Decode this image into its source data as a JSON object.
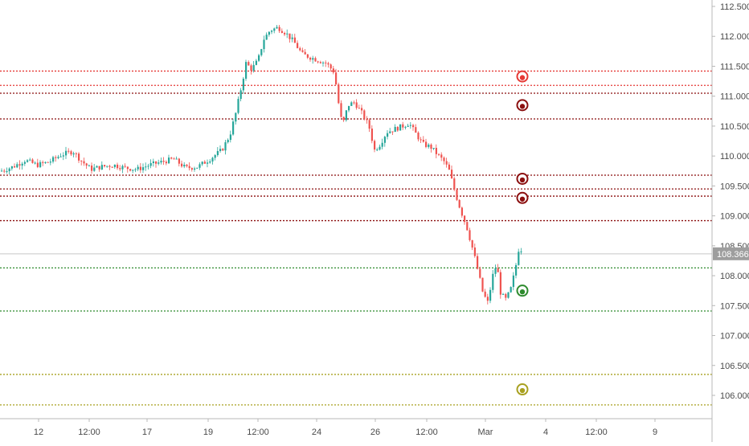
{
  "chart_data": {
    "type": "candlestick",
    "title": "",
    "xlabel": "",
    "ylabel": "",
    "ylim": [
      105.8,
      112.55
    ],
    "y_ticks": [
      "112.500",
      "112.000",
      "111.500",
      "111.000",
      "110.500",
      "110.000",
      "109.500",
      "109.000",
      "108.500",
      "108.000",
      "107.500",
      "107.000",
      "106.500",
      "106.000"
    ],
    "x_ticks": [
      "12",
      "12:00",
      "17",
      "19",
      "12:00",
      "24",
      "26",
      "12:00",
      "Mar",
      "4",
      "12:00",
      "9"
    ],
    "last_price": "108.366",
    "grid": false,
    "colors": {
      "up": "#26a69a",
      "down": "#ef5350",
      "resistance_bright": "#e53935",
      "resistance_dark": "#8b0f0f",
      "support": "#2e8b2e",
      "target": "#a8a020",
      "price_line": "#c8c8c8",
      "price_badge": "#9e9e9e"
    },
    "levels": [
      {
        "price": 111.42,
        "color": "#e53935"
      },
      {
        "price": 111.18,
        "color": "#e53935"
      },
      {
        "price": 111.05,
        "color": "#8b0f0f"
      },
      {
        "price": 110.62,
        "color": "#8b0f0f"
      },
      {
        "price": 109.68,
        "color": "#8b0f0f"
      },
      {
        "price": 109.45,
        "color": "#8b0f0f"
      },
      {
        "price": 109.33,
        "color": "#8b0f0f"
      },
      {
        "price": 108.92,
        "color": "#8b0f0f"
      },
      {
        "price": 108.13,
        "color": "#2e8b2e"
      },
      {
        "price": 107.41,
        "color": "#2e8b2e"
      },
      {
        "price": 106.35,
        "color": "#a8a020"
      },
      {
        "price": 105.84,
        "color": "#a8a020"
      }
    ],
    "markers": [
      {
        "price": 111.33,
        "color": "#e53935"
      },
      {
        "price": 110.85,
        "color": "#8b0f0f"
      },
      {
        "price": 109.62,
        "color": "#8b0f0f"
      },
      {
        "price": 109.3,
        "color": "#8b0f0f"
      },
      {
        "price": 107.75,
        "color": "#2e8b2e"
      },
      {
        "price": 106.1,
        "color": "#a8a020"
      }
    ],
    "price_path": [
      [
        0,
        109.75
      ],
      [
        15,
        109.82
      ],
      [
        30,
        109.93
      ],
      [
        45,
        109.85
      ],
      [
        60,
        109.9
      ],
      [
        75,
        110.02
      ],
      [
        90,
        110.08
      ],
      [
        100,
        109.92
      ],
      [
        112,
        109.78
      ],
      [
        125,
        109.82
      ],
      [
        140,
        109.85
      ],
      [
        155,
        109.8
      ],
      [
        170,
        109.78
      ],
      [
        185,
        109.85
      ],
      [
        200,
        109.9
      ],
      [
        215,
        109.95
      ],
      [
        230,
        109.8
      ],
      [
        245,
        109.82
      ],
      [
        260,
        109.95
      ],
      [
        275,
        110.1
      ],
      [
        285,
        110.35
      ],
      [
        292,
        110.7
      ],
      [
        300,
        111.2
      ],
      [
        305,
        111.55
      ],
      [
        312,
        111.45
      ],
      [
        320,
        111.6
      ],
      [
        327,
        111.95
      ],
      [
        335,
        112.1
      ],
      [
        345,
        112.15
      ],
      [
        355,
        112.05
      ],
      [
        365,
        111.9
      ],
      [
        375,
        111.7
      ],
      [
        385,
        111.65
      ],
      [
        395,
        111.6
      ],
      [
        405,
        111.55
      ],
      [
        415,
        111.4
      ],
      [
        420,
        110.9
      ],
      [
        425,
        110.5
      ],
      [
        432,
        110.85
      ],
      [
        440,
        110.9
      ],
      [
        450,
        110.7
      ],
      [
        458,
        110.5
      ],
      [
        465,
        110.1
      ],
      [
        472,
        110.2
      ],
      [
        480,
        110.4
      ],
      [
        490,
        110.45
      ],
      [
        500,
        110.5
      ],
      [
        508,
        110.55
      ],
      [
        515,
        110.4
      ],
      [
        525,
        110.2
      ],
      [
        535,
        110.15
      ],
      [
        545,
        110.0
      ],
      [
        552,
        109.9
      ],
      [
        558,
        109.75
      ],
      [
        565,
        109.4
      ],
      [
        572,
        109.1
      ],
      [
        580,
        108.8
      ],
      [
        588,
        108.4
      ],
      [
        595,
        108.0
      ],
      [
        600,
        107.7
      ],
      [
        606,
        107.55
      ],
      [
        612,
        108.0
      ],
      [
        617,
        108.2
      ],
      [
        622,
        107.7
      ],
      [
        628,
        107.6
      ],
      [
        634,
        107.75
      ],
      [
        640,
        108.1
      ],
      [
        645,
        108.5
      ],
      [
        650,
        108.37
      ]
    ]
  }
}
